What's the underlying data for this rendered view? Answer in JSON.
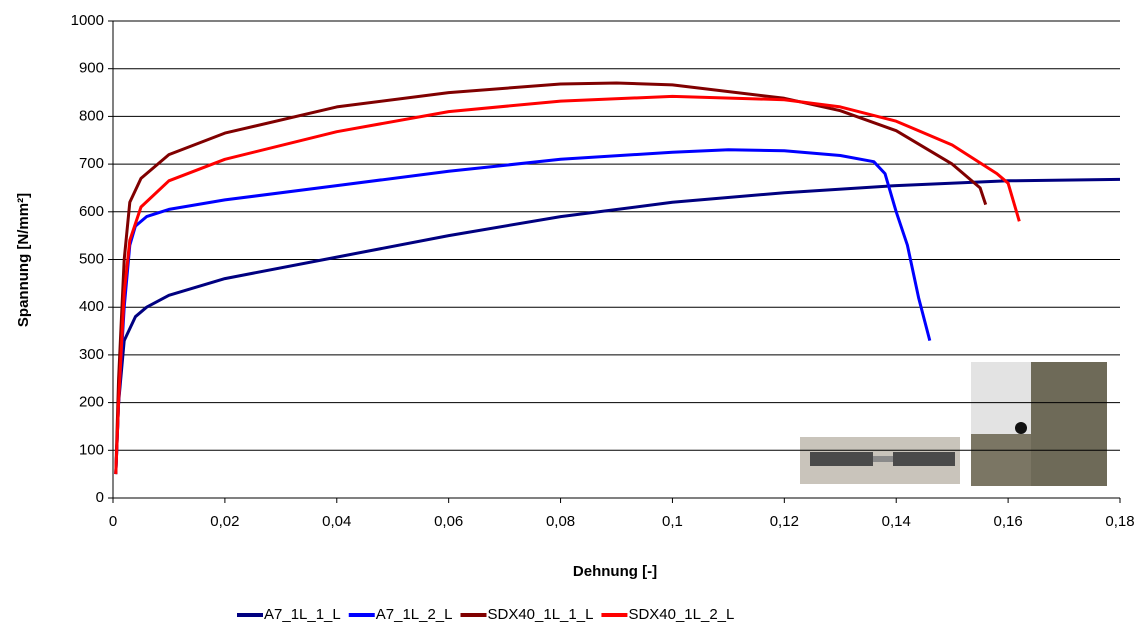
{
  "chart_data": {
    "type": "line",
    "xlabel": "Dehnung [-]",
    "ylabel": "Spannung [N/mm²]",
    "xlim": [
      0,
      0.18
    ],
    "ylim": [
      0,
      1000
    ],
    "xticks": [
      0,
      {
        "value": 0.02,
        "label": "0,02"
      },
      {
        "value": 0.04,
        "label": "0,04"
      },
      {
        "value": 0.06,
        "label": "0,06"
      },
      {
        "value": 0.08,
        "label": "0,08"
      },
      {
        "value": 0.1,
        "label": "0,1"
      },
      {
        "value": 0.12,
        "label": "0,12"
      },
      {
        "value": 0.14,
        "label": "0,14"
      },
      {
        "value": 0.16,
        "label": "0,16"
      },
      {
        "value": 0.18,
        "label": "0,18"
      }
    ],
    "yticks": [
      0,
      100,
      200,
      300,
      400,
      500,
      600,
      700,
      800,
      900,
      1000
    ],
    "grid": true,
    "legend": "bottom",
    "series": [
      {
        "name": "A7_1L_1_L",
        "color": "#000080",
        "x": [
          0.0005,
          0.001,
          0.002,
          0.004,
          0.006,
          0.01,
          0.02,
          0.04,
          0.06,
          0.08,
          0.1,
          0.12,
          0.14,
          0.16,
          0.18
        ],
        "values": [
          50,
          200,
          330,
          380,
          400,
          425,
          460,
          505,
          550,
          590,
          620,
          640,
          655,
          665,
          668
        ]
      },
      {
        "name": "A7_1L_2_L",
        "color": "#0000ff",
        "x": [
          0.0005,
          0.001,
          0.002,
          0.003,
          0.004,
          0.006,
          0.01,
          0.02,
          0.04,
          0.06,
          0.08,
          0.1,
          0.11,
          0.12,
          0.13,
          0.136,
          0.138,
          0.14,
          0.142,
          0.144,
          0.146
        ],
        "values": [
          50,
          200,
          400,
          530,
          570,
          590,
          605,
          625,
          655,
          685,
          710,
          725,
          730,
          728,
          718,
          705,
          680,
          600,
          530,
          420,
          330
        ]
      },
      {
        "name": "SDX40_1L_1_L",
        "color": "#800000",
        "x": [
          0.0005,
          0.001,
          0.002,
          0.003,
          0.005,
          0.01,
          0.02,
          0.04,
          0.06,
          0.08,
          0.09,
          0.1,
          0.12,
          0.13,
          0.14,
          0.15,
          0.155,
          0.156
        ],
        "values": [
          50,
          250,
          500,
          620,
          670,
          720,
          765,
          820,
          850,
          868,
          870,
          866,
          838,
          812,
          770,
          700,
          650,
          615
        ]
      },
      {
        "name": "SDX40_1L_2_L",
        "color": "#ff0000",
        "x": [
          0.0005,
          0.001,
          0.002,
          0.003,
          0.005,
          0.01,
          0.02,
          0.04,
          0.06,
          0.08,
          0.1,
          0.12,
          0.13,
          0.14,
          0.15,
          0.158,
          0.16,
          0.162
        ],
        "values": [
          50,
          200,
          430,
          540,
          610,
          665,
          710,
          768,
          810,
          832,
          842,
          835,
          820,
          790,
          740,
          680,
          660,
          580
        ]
      }
    ]
  }
}
